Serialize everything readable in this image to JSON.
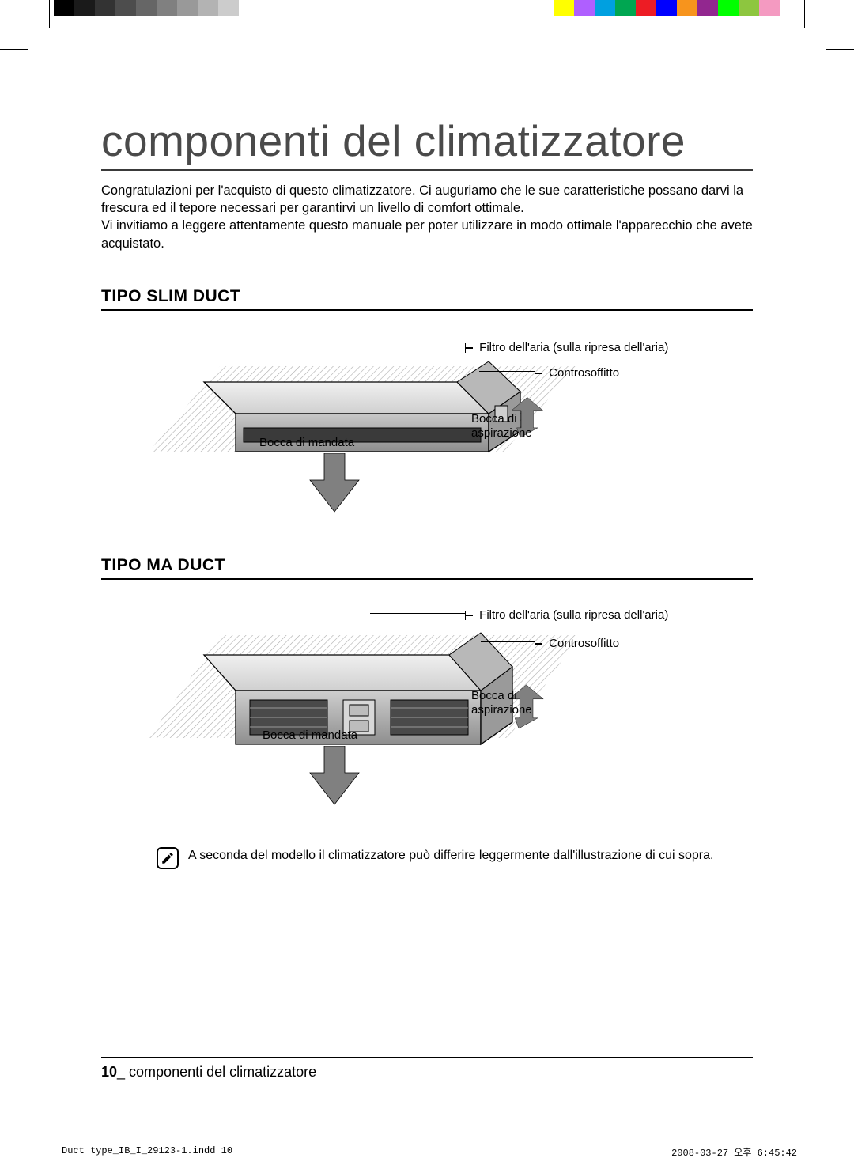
{
  "calibration": {
    "gray_swatches": [
      "#000000",
      "#1a1a1a",
      "#333333",
      "#4d4d4d",
      "#666666",
      "#808080",
      "#999999",
      "#b3b3b3",
      "#cccccc",
      "#ffffff"
    ],
    "color_swatches": [
      "#ffff00",
      "#af5fff",
      "#00a0e0",
      "#00a651",
      "#ed1c24",
      "#0000ff",
      "#f7941d",
      "#92278f",
      "#00ff00",
      "#8dc63f",
      "#f49ac1",
      "#ffffff"
    ]
  },
  "title": "componenti del climatizzatore",
  "intro_text": "Congratulazioni per l'acquisto di questo climatizzatore.  Ci auguriamo che le sue caratteristiche possano darvi  la frescura ed il tepore necessari per garantirvi un livello di comfort ottimale.\nVi invitiamo a leggere attentamente questo manuale per poter utilizzare in modo ottimale l'apparecchio che avete acquistato.",
  "sections": {
    "slim": {
      "heading": "TIPO SLIM DUCT",
      "labels": {
        "filter": "Filtro dell'aria (sulla ripresa dell'aria)",
        "ceiling": "Controsoffitto",
        "intake": "Bocca di\naspirazione",
        "outlet": "Bocca di mandata"
      }
    },
    "ma": {
      "heading": "TIPO MA DUCT",
      "labels": {
        "filter": "Filtro dell'aria (sulla ripresa dell'aria)",
        "ceiling": "Controsoffitto",
        "intake": "Bocca di\naspirazione",
        "outlet": "Bocca di mandata"
      }
    }
  },
  "note_text": "A seconda del modello il climatizzatore può differire leggermente dall'illustrazione di cui sopra.",
  "footer": {
    "page_number": "10",
    "section_label": "_ componenti del climatizzatore"
  },
  "print_meta": {
    "file": "Duct type_IB_I_29123-1.indd   10",
    "timestamp": "2008-03-27   오후 6:45:42"
  },
  "style": {
    "title_color": "#4a4a4a",
    "arrow_fill": "#808080",
    "device_stroke": "#000000",
    "device_fill_light": "#d8d8d8",
    "device_fill_mid": "#bcbcbc",
    "device_fill_dark": "#8a8a8a",
    "hatch_stroke": "#5a5a5a"
  }
}
